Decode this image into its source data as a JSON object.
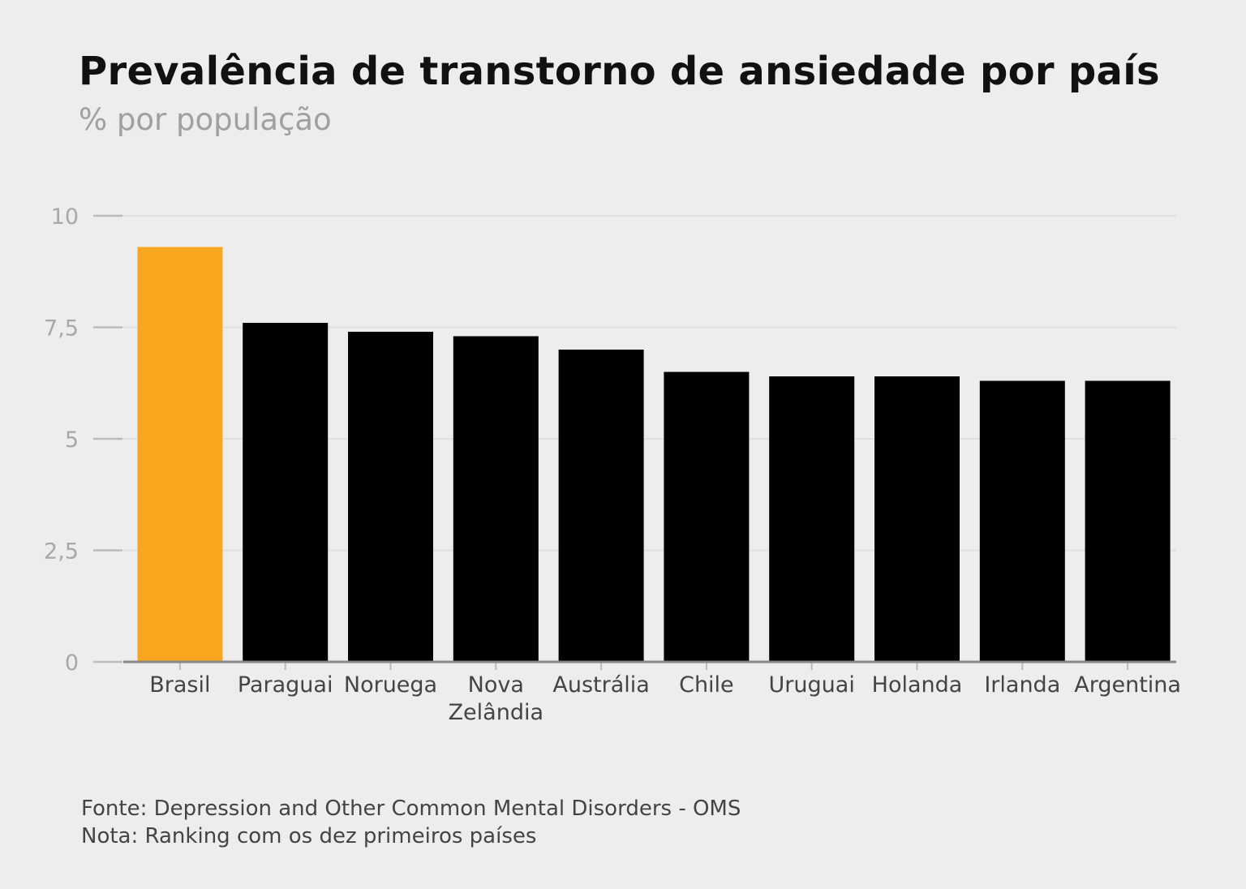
{
  "chart_data": {
    "type": "bar",
    "title": "Prevalência de transtorno de ansiedade por país",
    "subtitle": "% por população",
    "xlabel": "",
    "ylabel": "",
    "ylim": [
      0,
      10
    ],
    "yticks": [
      0,
      2.5,
      5,
      7.5,
      10
    ],
    "ytick_labels": [
      "0",
      "2,5",
      "5",
      "7,5",
      "10"
    ],
    "grid": true,
    "categories": [
      "Brasil",
      "Paraguai",
      "Noruega",
      "Nova Zelândia",
      "Austrália",
      "Chile",
      "Uruguai",
      "Holanda",
      "Irlanda",
      "Argentina"
    ],
    "category_lines": [
      [
        "Brasil"
      ],
      [
        "Paraguai"
      ],
      [
        "Noruega"
      ],
      [
        "Nova",
        "Zelândia"
      ],
      [
        "Austrália"
      ],
      [
        "Chile"
      ],
      [
        "Uruguai"
      ],
      [
        "Holanda"
      ],
      [
        "Irlanda"
      ],
      [
        "Argentina"
      ]
    ],
    "values": [
      9.3,
      7.6,
      7.4,
      7.3,
      7.0,
      6.5,
      6.4,
      6.4,
      6.3,
      6.3
    ],
    "colors": {
      "highlight": "#f9a61e",
      "default": "#000000",
      "grid": "#e0e0e0",
      "axis": "#888888",
      "tick_label": "#a8a8a8"
    },
    "highlight_category": "Brasil"
  },
  "footer": {
    "source": "Fonte: Depression and Other Common Mental Disorders - OMS",
    "note": "Nota: Ranking com os dez primeiros países"
  }
}
